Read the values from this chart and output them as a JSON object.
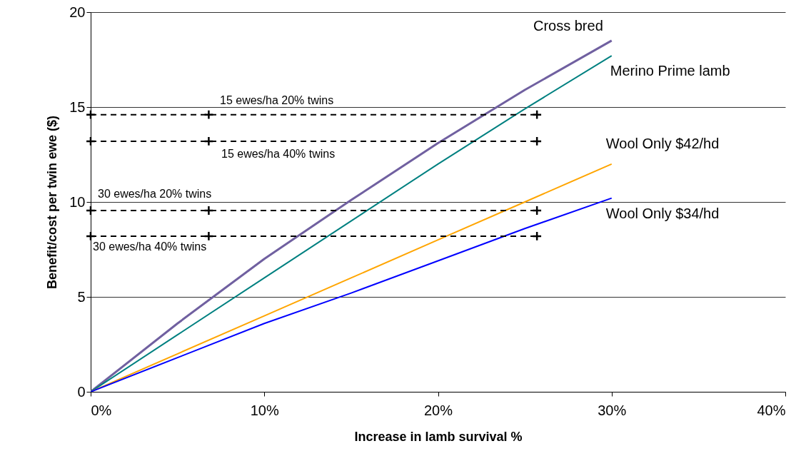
{
  "chart_data": {
    "type": "line",
    "xlabel": "Increase in lamb survival %",
    "ylabel": "Benefit/cost per twin ewe ($)",
    "xlim": [
      0,
      40
    ],
    "xticks": [
      {
        "value": 0,
        "label": "0%"
      },
      {
        "value": 10,
        "label": "10%"
      },
      {
        "value": 20,
        "label": "20%"
      },
      {
        "value": 30,
        "label": "30%"
      },
      {
        "value": 40,
        "label": "40%"
      }
    ],
    "ylim": [
      0,
      20
    ],
    "yticks": [
      0,
      5,
      10,
      15,
      20
    ],
    "grid": "y",
    "marker": "none",
    "line_style": "solid",
    "series": [
      {
        "name": "Cross bred",
        "color": "#7060a0",
        "x": [
          0,
          5,
          10,
          15,
          20,
          25,
          30
        ],
        "values": [
          0,
          3.6,
          7.0,
          10.1,
          13.1,
          15.9,
          18.5
        ]
      },
      {
        "name": "Merino Prime lamb",
        "color": "#008080",
        "x": [
          0,
          5,
          10,
          15,
          20,
          25,
          30
        ],
        "values": [
          0,
          3.0,
          6.0,
          9.0,
          12.0,
          14.9,
          17.7
        ]
      },
      {
        "name": "Wool Only $42/hd",
        "color": "#ffa500",
        "x": [
          0,
          5,
          10,
          15,
          20,
          25,
          30
        ],
        "values": [
          0,
          2.0,
          4.0,
          6.0,
          8.0,
          10.0,
          12.0
        ]
      },
      {
        "name": "Wool Only $34/hd",
        "color": "#0000ff",
        "x": [
          0,
          5,
          10,
          15,
          20,
          25,
          30
        ],
        "values": [
          0,
          1.8,
          3.6,
          5.2,
          6.9,
          8.6,
          10.2
        ]
      },
      {
        "color": "#000000",
        "line_style": "dashed",
        "marker": "cross",
        "x": [
          0,
          6.8,
          25.7
        ],
        "values": [
          14.6,
          14.6,
          14.6
        ]
      },
      {
        "color": "#000000",
        "line_style": "dashed",
        "marker": "cross",
        "x": [
          0,
          6.8,
          25.7
        ],
        "values": [
          13.2,
          13.2,
          13.2
        ]
      },
      {
        "color": "#000000",
        "line_style": "dashed",
        "marker": "cross",
        "x": [
          0,
          6.8,
          25.7
        ],
        "values": [
          9.55,
          9.55,
          9.55
        ]
      },
      {
        "color": "#000000",
        "line_style": "dashed",
        "marker": "cross",
        "x": [
          0,
          6.8,
          25.7
        ],
        "values": [
          8.2,
          8.2,
          8.2
        ]
      }
    ],
    "annotations": [
      "15 ewes/ha  20% twins",
      "15 ewes/ha  40% twins",
      "30 ewes/ha  20% twins",
      "30 ewes/ha  40% twins"
    ]
  }
}
